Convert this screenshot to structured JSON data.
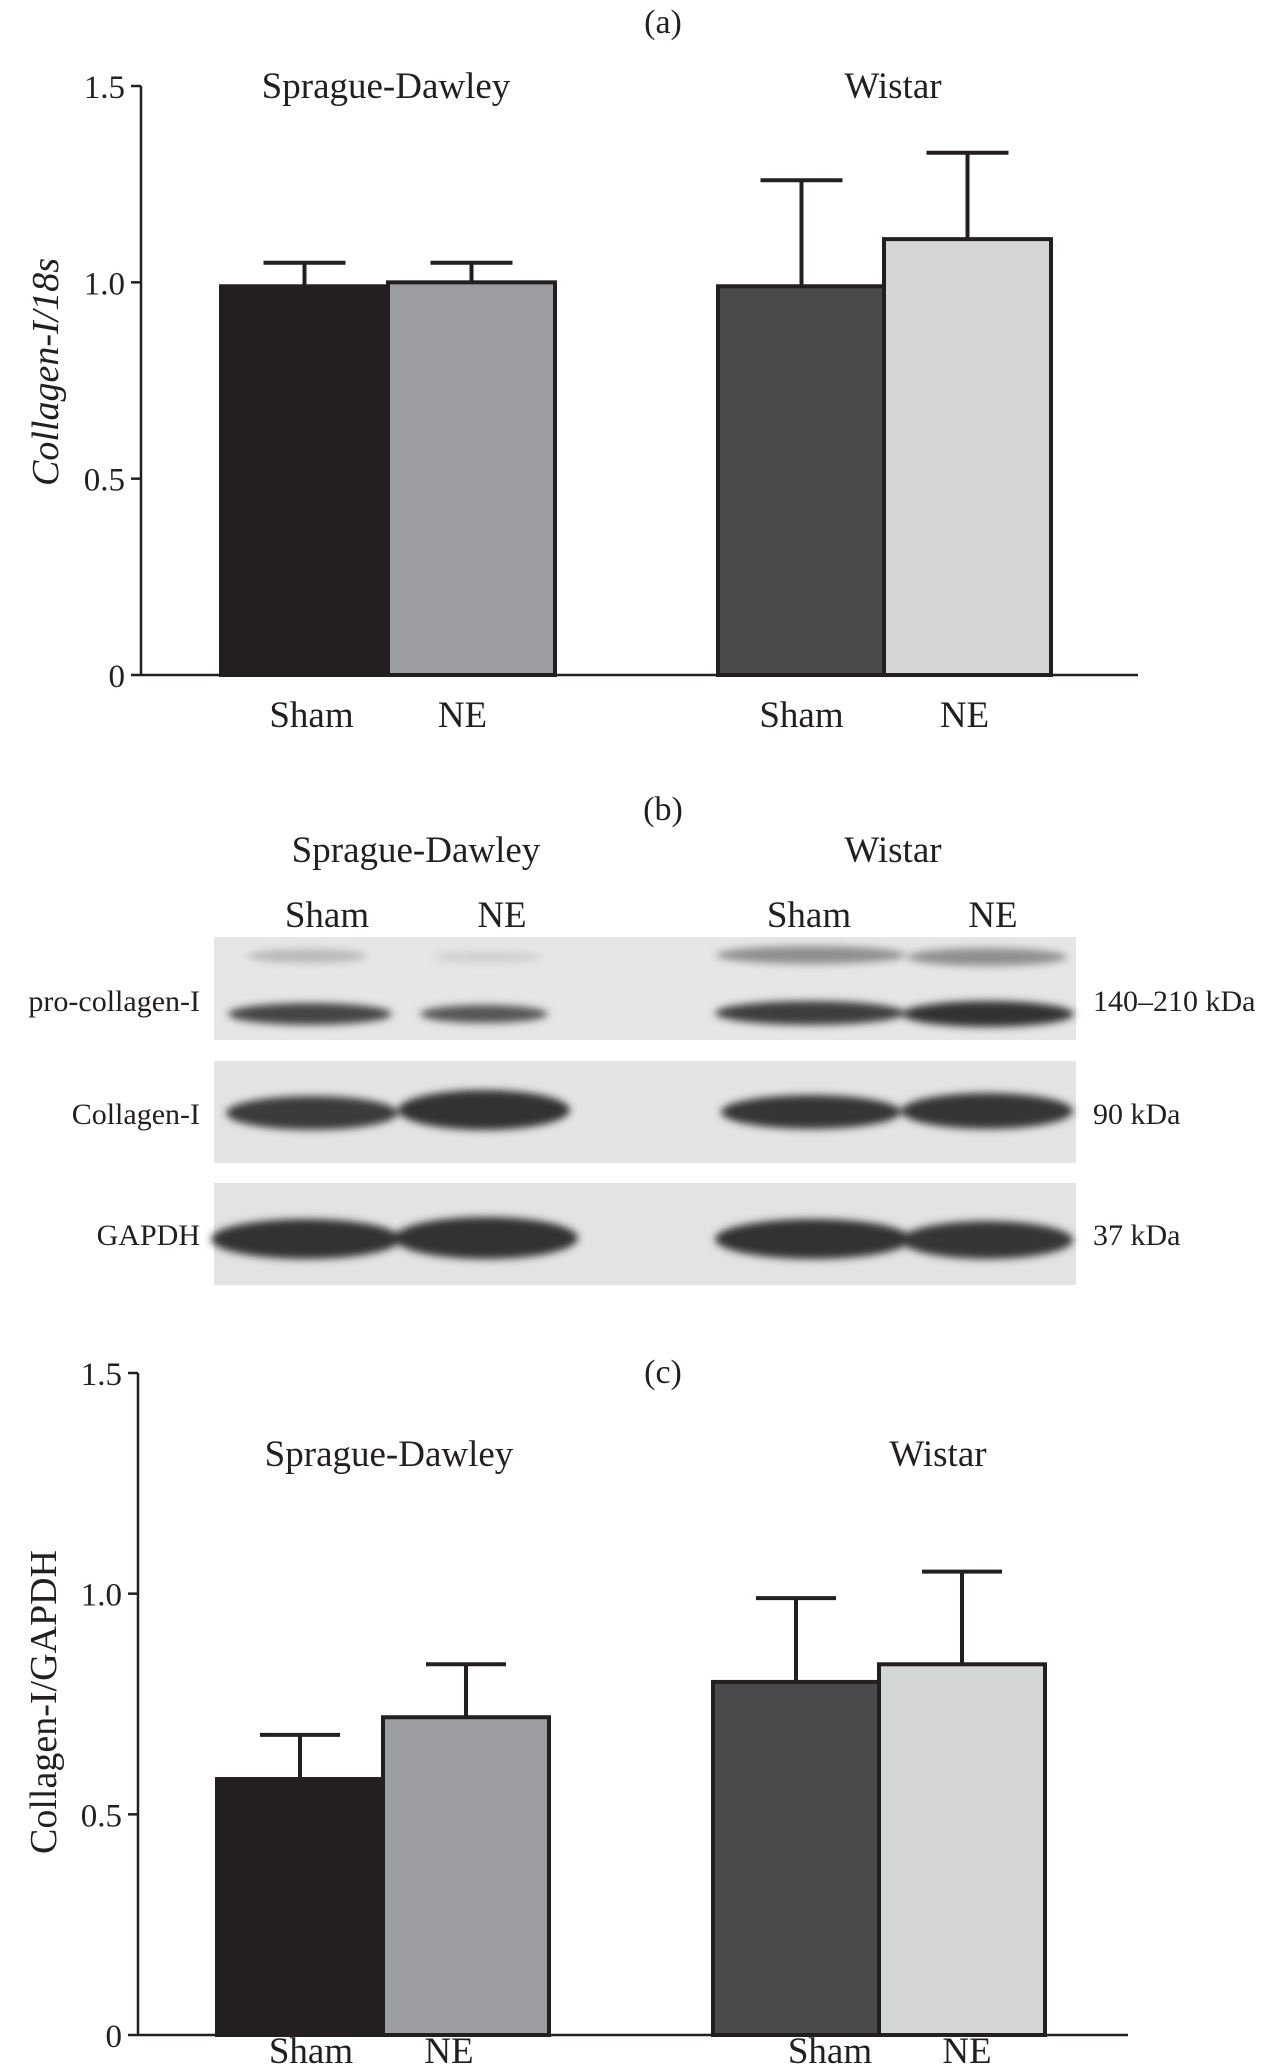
{
  "panels": {
    "a": {
      "label": "(a)"
    },
    "b": {
      "label": "(b)",
      "groups": [
        "Sprague-Dawley",
        "Wistar"
      ],
      "lanes": [
        "Sham",
        "NE",
        "Sham",
        "NE"
      ],
      "blots": [
        {
          "name": "pro-collagen-I",
          "size": "140–210 kDa"
        },
        {
          "name": "Collagen-I",
          "size": "90 kDa"
        },
        {
          "name": "GAPDH",
          "size": "37 kDa"
        }
      ]
    },
    "c": {
      "label": "(c)"
    }
  },
  "chart_data": [
    {
      "type": "bar",
      "panel": "a",
      "groups": [
        "Sprague-Dawley",
        "Wistar"
      ],
      "categories": [
        "Sham",
        "NE",
        "Sham",
        "NE"
      ],
      "values": [
        0.99,
        1.0,
        0.99,
        1.11
      ],
      "errors": [
        0.06,
        0.05,
        0.27,
        0.22
      ],
      "colors": [
        "#231f20",
        "#9c9da0",
        "#4a4a4d",
        "#d4d5d6"
      ],
      "ylabel": "Collagen-I/18s",
      "ylim": [
        0,
        1.5
      ],
      "yticks": [
        "0",
        "0.5",
        "1.0",
        "1.5"
      ]
    },
    {
      "type": "bar",
      "panel": "c",
      "groups": [
        "Sprague-Dawley",
        "Wistar"
      ],
      "categories": [
        "Sham",
        "NE",
        "Sham",
        "NE"
      ],
      "values": [
        0.58,
        0.72,
        0.8,
        0.84
      ],
      "errors": [
        0.1,
        0.12,
        0.19,
        0.21
      ],
      "colors": [
        "#231f20",
        "#9c9da0",
        "#4a4a4d",
        "#d4d5d6"
      ],
      "ylabel": "Collagen-I/GAPDH",
      "ylim": [
        0,
        1.5
      ],
      "yticks": [
        "0",
        "0.5",
        "1.0",
        "1.5"
      ]
    }
  ]
}
